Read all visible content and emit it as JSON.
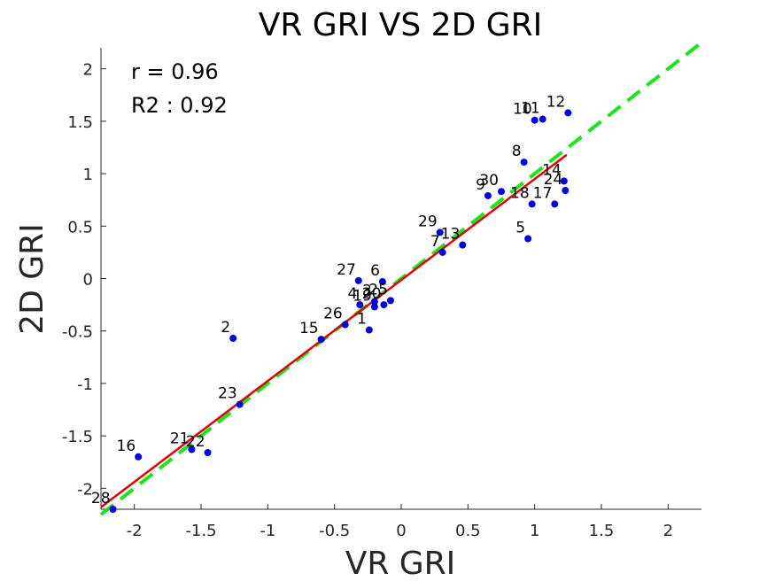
{
  "chart_data": {
    "type": "scatter",
    "title": "VR GRI VS 2D GRI",
    "xlabel": "VR GRI",
    "ylabel": "2D GRI",
    "xlim": [
      -2.25,
      2.25
    ],
    "ylim": [
      -2.2,
      2.2
    ],
    "xticks": [
      -2,
      -1.5,
      -1,
      -0.5,
      0,
      0.5,
      1,
      1.5,
      2
    ],
    "yticks": [
      2,
      1.5,
      1,
      0.5,
      0,
      -0.5,
      -1,
      -1.5,
      -2
    ],
    "xtick_labels": [
      "-2",
      "-1.5",
      "-1",
      "-0.5",
      "0",
      "0.5",
      "1",
      "1.5",
      "2"
    ],
    "ytick_labels": [
      "2",
      "1.5",
      "1",
      "0.5",
      "0",
      "-0.5",
      "-1",
      "-1.5",
      "-2"
    ],
    "annotations": [
      "r = 0.96",
      "R2 : 0.92"
    ],
    "point_color": "#0000e6",
    "fit_line_color": "#e60000",
    "identity_line_color": "#19e619",
    "grid": false,
    "points": [
      {
        "label": "1",
        "x": -0.24,
        "y": -0.49
      },
      {
        "label": "2",
        "x": -1.26,
        "y": -0.57
      },
      {
        "label": "3",
        "x": -0.2,
        "y": -0.22
      },
      {
        "label": "4",
        "x": -0.31,
        "y": -0.25
      },
      {
        "label": "5",
        "x": 0.95,
        "y": 0.38
      },
      {
        "label": "6",
        "x": -0.14,
        "y": -0.03
      },
      {
        "label": "7",
        "x": 0.31,
        "y": 0.25
      },
      {
        "label": "8",
        "x": 0.92,
        "y": 1.11
      },
      {
        "label": "9",
        "x": 0.65,
        "y": 0.79
      },
      {
        "label": "10",
        "x": 1.0,
        "y": 1.51
      },
      {
        "label": "11",
        "x": 1.06,
        "y": 1.52
      },
      {
        "label": "12",
        "x": 1.25,
        "y": 1.58
      },
      {
        "label": "13",
        "x": 0.46,
        "y": 0.32
      },
      {
        "label": "14",
        "x": 1.22,
        "y": 0.93
      },
      {
        "label": "15",
        "x": -0.6,
        "y": -0.58
      },
      {
        "label": "16",
        "x": -1.97,
        "y": -1.7
      },
      {
        "label": "17",
        "x": 1.15,
        "y": 0.71
      },
      {
        "label": "18",
        "x": 0.98,
        "y": 0.71
      },
      {
        "label": "19",
        "x": -0.2,
        "y": -0.27
      },
      {
        "label": "20",
        "x": -0.13,
        "y": -0.25
      },
      {
        "label": "21",
        "x": -1.57,
        "y": -1.63
      },
      {
        "label": "22",
        "x": -1.45,
        "y": -1.66
      },
      {
        "label": "23",
        "x": -1.21,
        "y": -1.2
      },
      {
        "label": "24",
        "x": 1.23,
        "y": 0.84
      },
      {
        "label": "25",
        "x": -0.08,
        "y": -0.21
      },
      {
        "label": "26",
        "x": -0.42,
        "y": -0.44
      },
      {
        "label": "27",
        "x": -0.32,
        "y": -0.02
      },
      {
        "label": "28",
        "x": -2.16,
        "y": -2.2
      },
      {
        "label": "29",
        "x": 0.29,
        "y": 0.44
      },
      {
        "label": "30",
        "x": 0.75,
        "y": 0.83
      }
    ],
    "fit_line": {
      "x": [
        -2.25,
        1.24
      ],
      "y": [
        -2.18,
        1.18
      ]
    },
    "identity_line": {
      "x": [
        -2.25,
        2.25
      ],
      "y": [
        -2.25,
        2.25
      ]
    }
  }
}
